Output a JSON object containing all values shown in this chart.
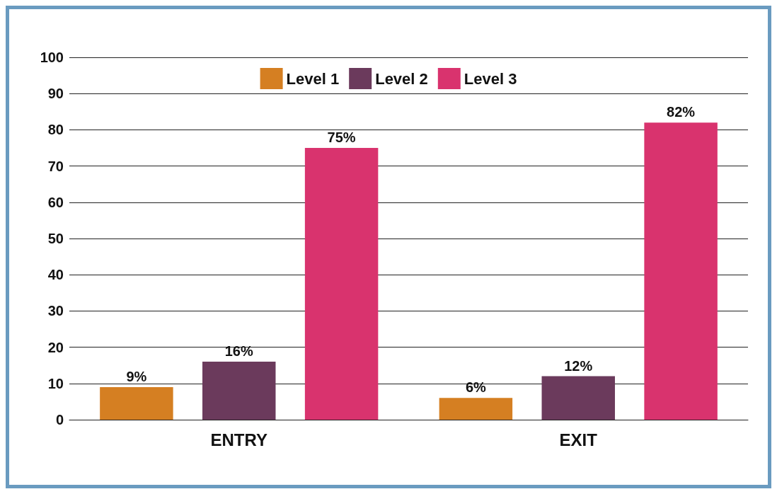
{
  "chart_data": {
    "type": "bar",
    "categories": [
      "ENTRY",
      "EXIT"
    ],
    "series": [
      {
        "name": "Level 1",
        "color": "#d57f22",
        "values": [
          9,
          6
        ],
        "value_labels": [
          "9%",
          "6%"
        ]
      },
      {
        "name": "Level 2",
        "color": "#6b3a5c",
        "values": [
          16,
          12
        ],
        "value_labels": [
          "16%",
          "12%"
        ]
      },
      {
        "name": "Level 3",
        "color": "#d9336e",
        "values": [
          75,
          82
        ],
        "value_labels": [
          "75%",
          "82%"
        ]
      }
    ],
    "ylim": [
      0,
      100
    ],
    "yticks": [
      0,
      10,
      20,
      30,
      40,
      50,
      60,
      70,
      80,
      90,
      100
    ],
    "grid": "y",
    "legend": "top"
  }
}
